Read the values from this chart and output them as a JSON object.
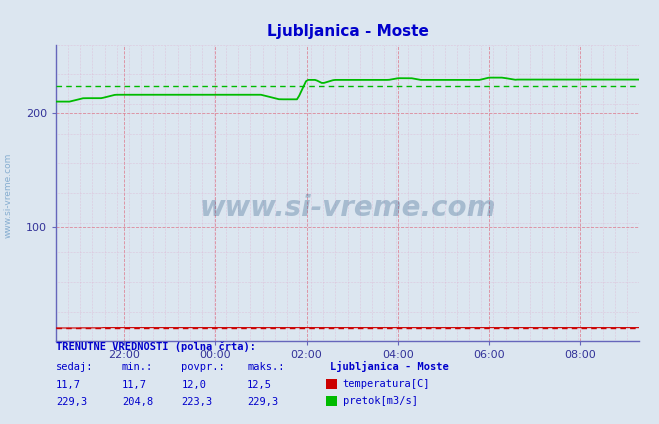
{
  "title": "Ljubljanica - Moste",
  "title_color": "#0000cc",
  "bg_color": "#dce6f0",
  "plot_bg_color": "#dce6f0",
  "temp_color": "#cc0000",
  "flow_color": "#00bb00",
  "spine_color": "#6666bb",
  "arrow_color": "#cc0000",
  "grid_major_color": "#ff9999",
  "grid_minor_color": "#cc99bb",
  "ylim": [
    0,
    260
  ],
  "yticks": [
    100,
    200
  ],
  "watermark_text": "www.si-vreme.com",
  "watermark_color": "#1a4d7a",
  "watermark_alpha": 0.28,
  "sidebar_text": "www.si-vreme.com",
  "sidebar_color": "#4d88bb",
  "temp_sedaj": "11,7",
  "temp_min": "11,7",
  "temp_povpr": "12,0",
  "temp_maks": "12,5",
  "flow_sedaj": "229,3",
  "flow_min": "204,8",
  "flow_povpr": "223,3",
  "flow_maks": "229,3",
  "legend_station": "Ljubljanica - Moste",
  "text_color": "#0000cc",
  "flow_avg": 223.3,
  "temp_avg": 12.0,
  "xtick_labels": [
    "22:00",
    "00:00",
    "02:00",
    "04:00",
    "06:00",
    "08:00"
  ],
  "xtick_positions": [
    1.5,
    3.5,
    5.5,
    7.5,
    9.5,
    11.5
  ]
}
